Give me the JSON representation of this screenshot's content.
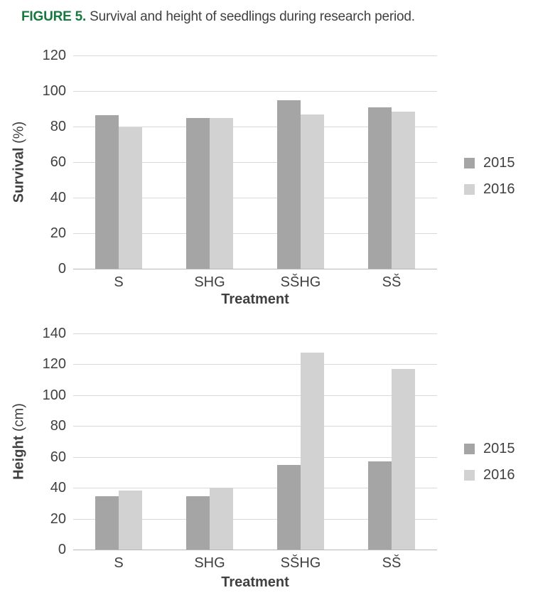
{
  "figure": {
    "label": "FIGURE 5.",
    "caption": "Survival and height of seedlings during research period.",
    "label_color": "#17793f",
    "text_color": "#404042"
  },
  "colors": {
    "series_2015": "#a5a5a5",
    "series_2016": "#d2d2d2",
    "gridline": "#d9d9d9",
    "axis_line": "#b8b8b8",
    "text": "#404042"
  },
  "chart_data": [
    {
      "type": "bar",
      "name": "survival",
      "categories": [
        "S",
        "SHG",
        "SŠHG",
        "SŠ"
      ],
      "series": [
        {
          "name": "2015",
          "values": [
            86.5,
            85,
            95,
            91
          ]
        },
        {
          "name": "2016",
          "values": [
            79.5,
            85,
            87,
            88.5
          ]
        }
      ],
      "xlabel": "Treatment",
      "ylabel": "Survival",
      "ylabel_unit": "(%)",
      "ylim": [
        0,
        120
      ],
      "ytick_step": 20,
      "grid": true,
      "legend_position": "right",
      "legend": [
        "2015",
        "2016"
      ]
    },
    {
      "type": "bar",
      "name": "height",
      "categories": [
        "S",
        "SHG",
        "SŠHG",
        "SŠ"
      ],
      "series": [
        {
          "name": "2015",
          "values": [
            34.5,
            34.5,
            55,
            57
          ]
        },
        {
          "name": "2016",
          "values": [
            38,
            40,
            127.5,
            117
          ]
        }
      ],
      "xlabel": "Treatment",
      "ylabel": "Height",
      "ylabel_unit": "(cm)",
      "ylim": [
        0,
        140
      ],
      "ytick_step": 20,
      "grid": true,
      "legend_position": "right",
      "legend": [
        "2015",
        "2016"
      ]
    }
  ]
}
